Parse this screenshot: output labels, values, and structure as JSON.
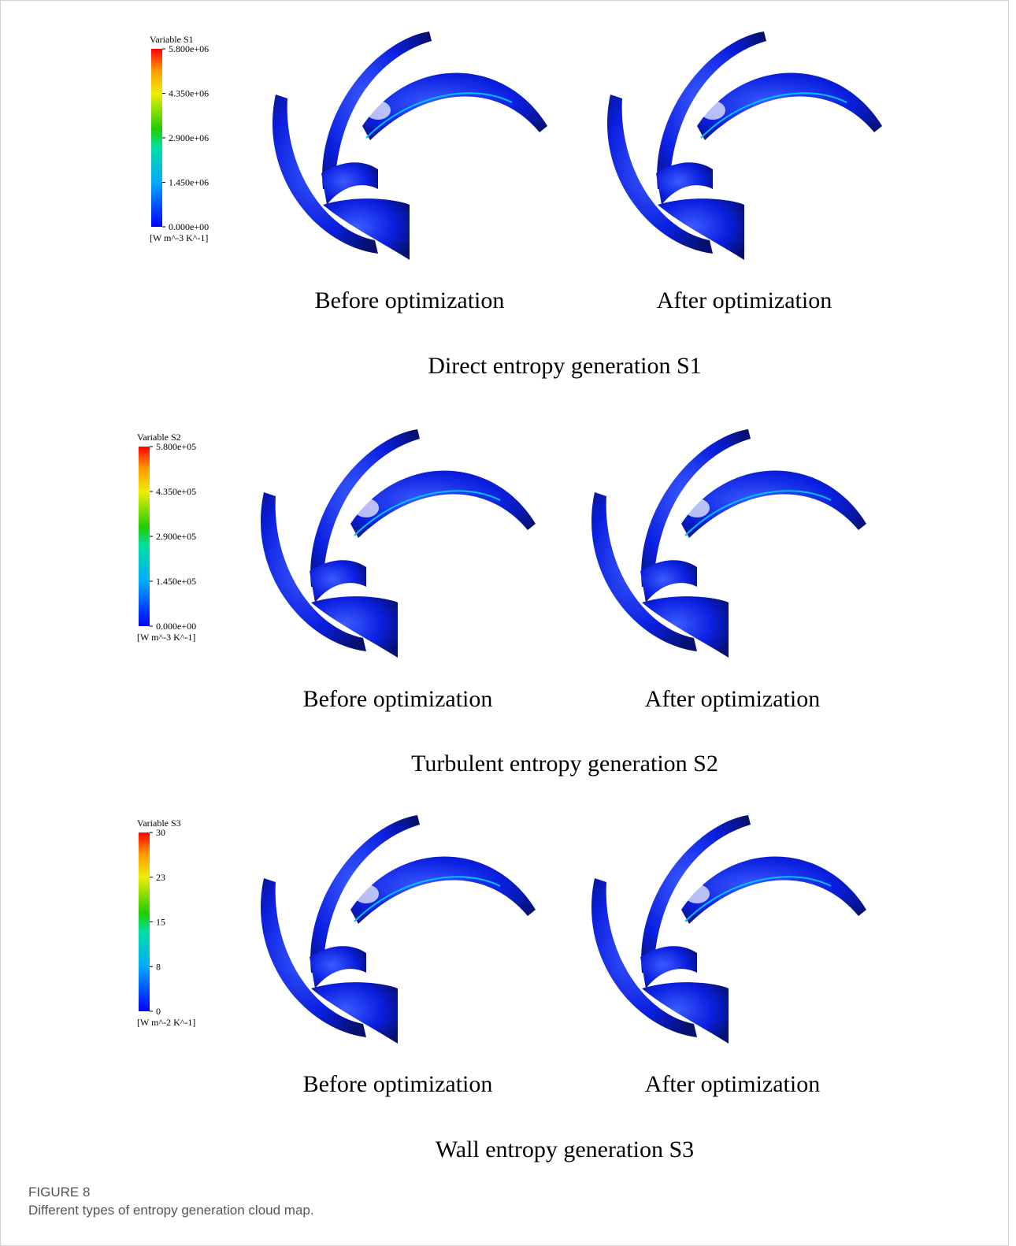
{
  "panels": [
    {
      "legend": {
        "title": "Variable S1",
        "ticks": [
          "5.800e+06",
          "4.350e+06",
          "2.900e+06",
          "1.450e+06",
          "0.000e+00"
        ],
        "unit": "[W m^-3 K^-1]"
      },
      "labels": [
        "Before optimization",
        "After optimization"
      ],
      "title": "Direct entropy generation S1"
    },
    {
      "legend": {
        "title": "Variable S2",
        "ticks": [
          "5.800e+05",
          "4.350e+05",
          "2.900e+05",
          "1.450e+05",
          "0.000e+00"
        ],
        "unit": "[W m^-3 K^-1]"
      },
      "labels": [
        "Before optimization",
        "After optimization"
      ],
      "title": "Turbulent entropy generation S2"
    },
    {
      "legend": {
        "title": "Variable S3",
        "ticks": [
          "30",
          "23",
          "15",
          "8",
          "0"
        ],
        "unit": "[W m^-2 K^-1]"
      },
      "labels": [
        "Before optimization",
        "After optimization"
      ],
      "title": "Wall entropy generation S3"
    }
  ],
  "figure": {
    "label": "FIGURE 8",
    "caption": "Different types of entropy generation cloud map."
  }
}
